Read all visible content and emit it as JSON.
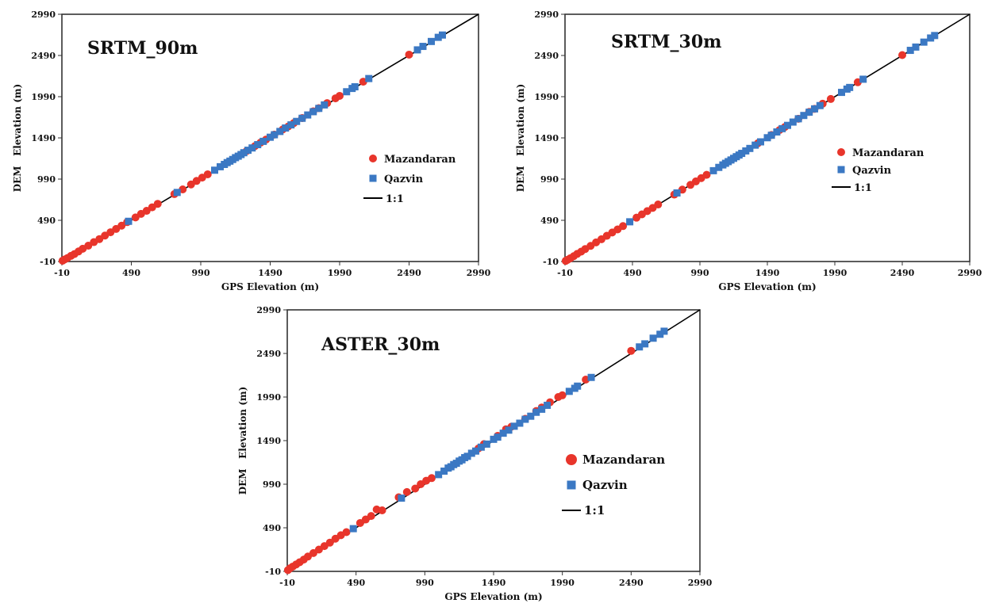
{
  "figure": {
    "colors": {
      "mazandaran": "#e8352b",
      "qazvin": "#3b78c3",
      "line": "#000000",
      "frame": "#333333"
    }
  },
  "chart_data": [
    {
      "type": "scatter",
      "title": "SRTM_90m",
      "xlabel": "GPS Elevation (m)",
      "ylabel": "DEM   Elevation (m)",
      "xlim": [
        -10,
        2990
      ],
      "ylim": [
        -10,
        2990
      ],
      "ticks": [
        "-10",
        "490",
        "990",
        "1490",
        "1990",
        "2490",
        "2990"
      ],
      "grid": false,
      "legend": {
        "placement": "right-middle",
        "items": [
          "Mazandaran",
          "Qazvin",
          "1:1"
        ]
      },
      "series": [
        {
          "name": "Mazandaran",
          "marker": "circle",
          "color": "#e8352b",
          "points": [
            [
              -5,
              0
            ],
            [
              10,
              15
            ],
            [
              30,
              32
            ],
            [
              55,
              58
            ],
            [
              80,
              80
            ],
            [
              110,
              112
            ],
            [
              140,
              145
            ],
            [
              180,
              182
            ],
            [
              220,
              225
            ],
            [
              260,
              262
            ],
            [
              300,
              305
            ],
            [
              340,
              345
            ],
            [
              380,
              385
            ],
            [
              420,
              425
            ],
            [
              460,
              468
            ],
            [
              520,
              525
            ],
            [
              560,
              568
            ],
            [
              600,
              605
            ],
            [
              640,
              648
            ],
            [
              680,
              690
            ],
            [
              800,
              808
            ],
            [
              860,
              865
            ],
            [
              920,
              925
            ],
            [
              960,
              968
            ],
            [
              1000,
              1008
            ],
            [
              1040,
              1048
            ],
            [
              1320,
              1330
            ],
            [
              1380,
              1390
            ],
            [
              1420,
              1432
            ],
            [
              1460,
              1470
            ],
            [
              1520,
              1530
            ],
            [
              1580,
              1592
            ],
            [
              1620,
              1628
            ],
            [
              1660,
              1670
            ],
            [
              1720,
              1730
            ],
            [
              1800,
              1812
            ],
            [
              1840,
              1850
            ],
            [
              1900,
              1912
            ],
            [
              1960,
              1970
            ],
            [
              1990,
              2000
            ],
            [
              2160,
              2172
            ],
            [
              2490,
              2500
            ]
          ]
        },
        {
          "name": "Qazvin",
          "marker": "square",
          "color": "#3b78c3",
          "points": [
            [
              470,
              478
            ],
            [
              820,
              828
            ],
            [
              1090,
              1098
            ],
            [
              1130,
              1140
            ],
            [
              1160,
              1168
            ],
            [
              1180,
              1190
            ],
            [
              1200,
              1208
            ],
            [
              1220,
              1228
            ],
            [
              1240,
              1250
            ],
            [
              1260,
              1268
            ],
            [
              1280,
              1288
            ],
            [
              1300,
              1310
            ],
            [
              1330,
              1340
            ],
            [
              1360,
              1368
            ],
            [
              1400,
              1408
            ],
            [
              1440,
              1448
            ],
            [
              1490,
              1498
            ],
            [
              1520,
              1528
            ],
            [
              1560,
              1568
            ],
            [
              1600,
              1610
            ],
            [
              1640,
              1648
            ],
            [
              1680,
              1690
            ],
            [
              1720,
              1728
            ],
            [
              1760,
              1768
            ],
            [
              1800,
              1808
            ],
            [
              1840,
              1848
            ],
            [
              1880,
              1890
            ],
            [
              2040,
              2050
            ],
            [
              2080,
              2090
            ],
            [
              2100,
              2110
            ],
            [
              2200,
              2210
            ],
            [
              2550,
              2558
            ],
            [
              2590,
              2600
            ],
            [
              2650,
              2660
            ],
            [
              2700,
              2710
            ],
            [
              2730,
              2738
            ]
          ]
        }
      ]
    },
    {
      "type": "scatter",
      "title": "SRTM_30m",
      "xlabel": "GPS Elevation (m)",
      "ylabel": "DEM   Elevation (m)",
      "xlim": [
        -10,
        2990
      ],
      "ylim": [
        -10,
        2990
      ],
      "ticks": [
        "-10",
        "490",
        "990",
        "1490",
        "1990",
        "2490",
        "2990"
      ],
      "grid": false,
      "legend": {
        "placement": "right-middle",
        "items": [
          "Mazandaran",
          "Qazvin",
          "1:1"
        ]
      },
      "series": [
        {
          "name": "Mazandaran",
          "marker": "circle",
          "color": "#e8352b",
          "points": [
            [
              -5,
              -2
            ],
            [
              10,
              12
            ],
            [
              30,
              30
            ],
            [
              55,
              55
            ],
            [
              80,
              82
            ],
            [
              110,
              110
            ],
            [
              140,
              142
            ],
            [
              180,
              180
            ],
            [
              220,
              222
            ],
            [
              260,
              260
            ],
            [
              300,
              302
            ],
            [
              340,
              342
            ],
            [
              380,
              380
            ],
            [
              420,
              420
            ],
            [
              520,
              522
            ],
            [
              560,
              562
            ],
            [
              600,
              602
            ],
            [
              640,
              640
            ],
            [
              680,
              682
            ],
            [
              800,
              802
            ],
            [
              860,
              862
            ],
            [
              920,
              920
            ],
            [
              960,
              962
            ],
            [
              1000,
              1002
            ],
            [
              1040,
              1042
            ],
            [
              1420,
              1425
            ],
            [
              1520,
              1525
            ],
            [
              1580,
              1585
            ],
            [
              1620,
              1622
            ],
            [
              1720,
              1722
            ],
            [
              1800,
              1805
            ],
            [
              1840,
              1842
            ],
            [
              1900,
              1905
            ],
            [
              1960,
              1962
            ],
            [
              2160,
              2165
            ],
            [
              2490,
              2495
            ]
          ]
        },
        {
          "name": "Qazvin",
          "marker": "square",
          "color": "#3b78c3",
          "points": [
            [
              470,
              472
            ],
            [
              820,
              822
            ],
            [
              1090,
              1092
            ],
            [
              1130,
              1132
            ],
            [
              1160,
              1162
            ],
            [
              1180,
              1182
            ],
            [
              1200,
              1202
            ],
            [
              1220,
              1222
            ],
            [
              1240,
              1242
            ],
            [
              1260,
              1262
            ],
            [
              1280,
              1282
            ],
            [
              1300,
              1302
            ],
            [
              1330,
              1332
            ],
            [
              1360,
              1362
            ],
            [
              1400,
              1402
            ],
            [
              1440,
              1442
            ],
            [
              1490,
              1492
            ],
            [
              1520,
              1522
            ],
            [
              1560,
              1562
            ],
            [
              1600,
              1602
            ],
            [
              1640,
              1642
            ],
            [
              1680,
              1682
            ],
            [
              1720,
              1722
            ],
            [
              1760,
              1762
            ],
            [
              1800,
              1802
            ],
            [
              1840,
              1842
            ],
            [
              1880,
              1882
            ],
            [
              2040,
              2042
            ],
            [
              2080,
              2082
            ],
            [
              2100,
              2102
            ],
            [
              2200,
              2202
            ],
            [
              2550,
              2552
            ],
            [
              2590,
              2592
            ],
            [
              2650,
              2652
            ],
            [
              2700,
              2702
            ],
            [
              2730,
              2732
            ]
          ]
        }
      ]
    },
    {
      "type": "scatter",
      "title": "ASTER_30m",
      "xlabel": "GPS Elevation (m)",
      "ylabel": "DEM   Elevation (m)",
      "xlim": [
        -10,
        2990
      ],
      "ylim": [
        -10,
        2990
      ],
      "ticks": [
        "-10",
        "490",
        "990",
        "1490",
        "1990",
        "2490",
        "2990"
      ],
      "grid": false,
      "legend": {
        "placement": "right-middle",
        "items": [
          "Mazandaran",
          "Qazvin",
          "1:1"
        ]
      },
      "series": [
        {
          "name": "Mazandaran",
          "marker": "circle",
          "color": "#e8352b",
          "points": [
            [
              -5,
              5
            ],
            [
              10,
              25
            ],
            [
              30,
              45
            ],
            [
              55,
              70
            ],
            [
              80,
              95
            ],
            [
              110,
              125
            ],
            [
              140,
              160
            ],
            [
              180,
              200
            ],
            [
              220,
              240
            ],
            [
              260,
              280
            ],
            [
              300,
              320
            ],
            [
              340,
              365
            ],
            [
              380,
              405
            ],
            [
              420,
              440
            ],
            [
              520,
              545
            ],
            [
              560,
              585
            ],
            [
              600,
              625
            ],
            [
              640,
              700
            ],
            [
              680,
              690
            ],
            [
              800,
              840
            ],
            [
              860,
              900
            ],
            [
              920,
              940
            ],
            [
              960,
              990
            ],
            [
              1000,
              1030
            ],
            [
              1040,
              1060
            ],
            [
              1380,
              1400
            ],
            [
              1420,
              1450
            ],
            [
              1520,
              1545
            ],
            [
              1580,
              1620
            ],
            [
              1620,
              1650
            ],
            [
              1720,
              1740
            ],
            [
              1800,
              1830
            ],
            [
              1840,
              1870
            ],
            [
              1900,
              1930
            ],
            [
              1960,
              1990
            ],
            [
              1990,
              2010
            ],
            [
              2160,
              2190
            ],
            [
              2490,
              2520
            ]
          ]
        },
        {
          "name": "Qazvin",
          "marker": "square",
          "color": "#3b78c3",
          "points": [
            [
              470,
              480
            ],
            [
              820,
              830
            ],
            [
              1090,
              1100
            ],
            [
              1130,
              1140
            ],
            [
              1160,
              1175
            ],
            [
              1180,
              1190
            ],
            [
              1200,
              1215
            ],
            [
              1220,
              1230
            ],
            [
              1240,
              1255
            ],
            [
              1260,
              1270
            ],
            [
              1280,
              1295
            ],
            [
              1300,
              1310
            ],
            [
              1330,
              1345
            ],
            [
              1360,
              1370
            ],
            [
              1400,
              1415
            ],
            [
              1440,
              1450
            ],
            [
              1490,
              1505
            ],
            [
              1520,
              1530
            ],
            [
              1560,
              1575
            ],
            [
              1600,
              1610
            ],
            [
              1640,
              1655
            ],
            [
              1680,
              1690
            ],
            [
              1720,
              1735
            ],
            [
              1760,
              1770
            ],
            [
              1800,
              1815
            ],
            [
              1840,
              1850
            ],
            [
              1880,
              1895
            ],
            [
              2040,
              2055
            ],
            [
              2080,
              2090
            ],
            [
              2100,
              2115
            ],
            [
              2200,
              2215
            ],
            [
              2550,
              2565
            ],
            [
              2590,
              2600
            ],
            [
              2650,
              2665
            ],
            [
              2700,
              2710
            ],
            [
              2730,
              2745
            ]
          ]
        }
      ]
    }
  ]
}
